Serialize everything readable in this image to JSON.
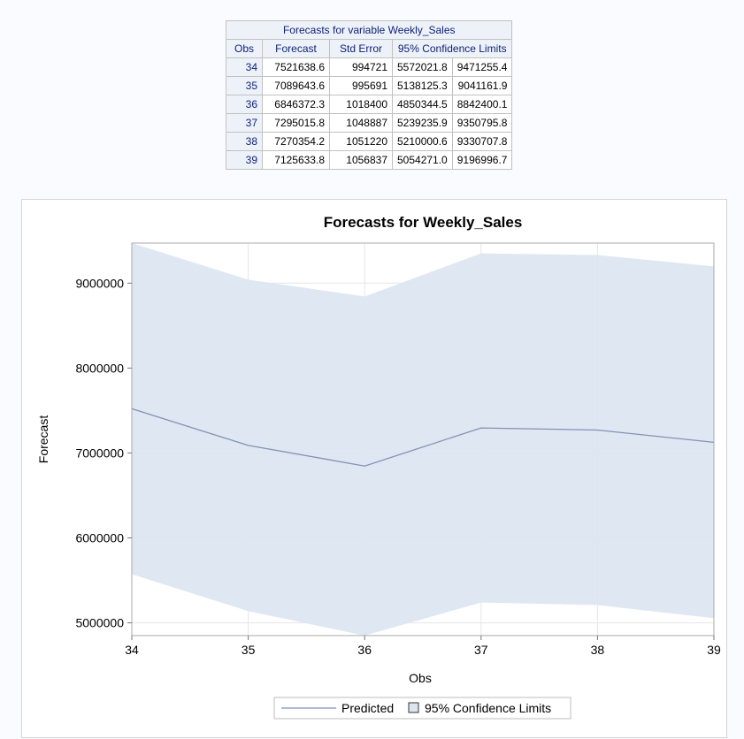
{
  "table": {
    "title": "Forecasts for variable Weekly_Sales",
    "headers": [
      "Obs",
      "Forecast",
      "Std Error",
      "95% Confidence Limits"
    ],
    "rows": [
      [
        "34",
        "7521638.6",
        "994721",
        "5572021.8",
        "9471255.4"
      ],
      [
        "35",
        "7089643.6",
        "995691",
        "5138125.3",
        "9041161.9"
      ],
      [
        "36",
        "6846372.3",
        "1018400",
        "4850344.5",
        "8842400.1"
      ],
      [
        "37",
        "7295015.8",
        "1048887",
        "5239235.9",
        "9350795.8"
      ],
      [
        "38",
        "7270354.2",
        "1051220",
        "5210000.6",
        "9330707.8"
      ],
      [
        "39",
        "7125633.8",
        "1056837",
        "5054271.0",
        "9196996.7"
      ]
    ]
  },
  "colors": {
    "band": "#dbe5f1",
    "line": "#8391b4",
    "header_bg": "#edf2f9",
    "header_text": "#112277"
  },
  "chart_data": {
    "type": "line",
    "title": "Forecasts for Weekly_Sales",
    "xlabel": "Obs",
    "ylabel": "Forecast",
    "x": [
      34,
      35,
      36,
      37,
      38,
      39
    ],
    "series": [
      {
        "name": "Predicted",
        "values": [
          7521638.6,
          7089643.6,
          6846372.3,
          7295015.8,
          7270354.2,
          7125633.8
        ]
      }
    ],
    "band": {
      "name": "95% Confidence Limits",
      "lower": [
        5572021.8,
        5138125.3,
        4850344.5,
        5239235.9,
        5210000.6,
        5054271.0
      ],
      "upper": [
        9471255.4,
        9041161.9,
        8842400.1,
        9350795.8,
        9330707.8,
        9196996.7
      ]
    },
    "xticks": [
      "34",
      "35",
      "36",
      "37",
      "38",
      "39"
    ],
    "yticks": [
      "5000000",
      "6000000",
      "7000000",
      "8000000",
      "9000000"
    ],
    "ytick_values": [
      5000000,
      6000000,
      7000000,
      8000000,
      9000000
    ],
    "xlim": [
      34,
      39
    ],
    "ylim": [
      4850344.5,
      9471255.4
    ],
    "grid": true,
    "legend": {
      "position": "bottom",
      "entries": [
        "Predicted",
        "95% Confidence Limits"
      ]
    }
  }
}
